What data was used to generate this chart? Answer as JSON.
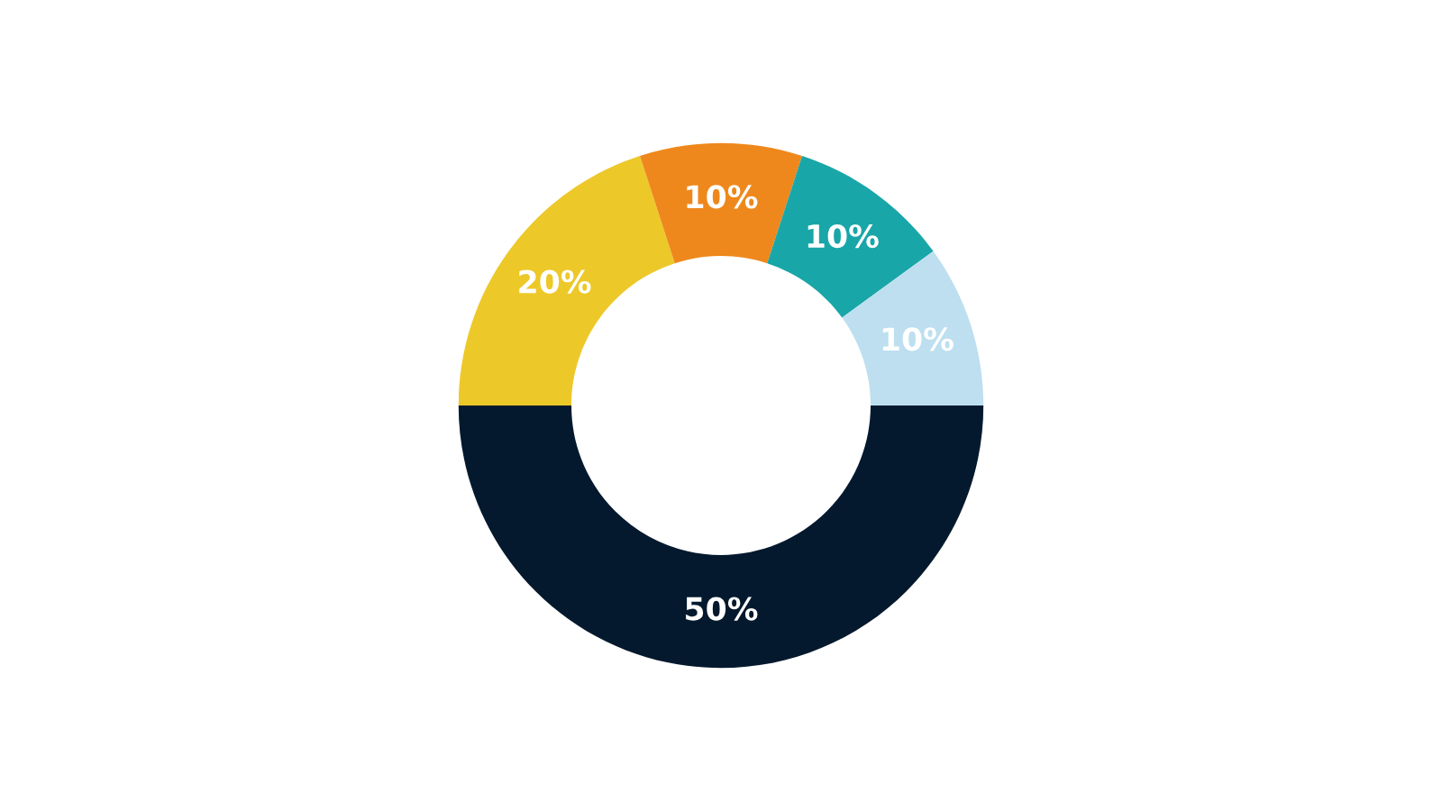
{
  "chart_data": {
    "type": "donut",
    "categories": [
      null,
      null,
      null,
      null,
      null
    ],
    "values": [
      20,
      10,
      10,
      10,
      50
    ],
    "value_labels": [
      "20%",
      "10%",
      "10%",
      "10%",
      "50%"
    ],
    "colors": [
      "#edc829",
      "#ee881c",
      "#19a6a8",
      "#bddff0",
      "#04192d"
    ],
    "legend": false
  }
}
